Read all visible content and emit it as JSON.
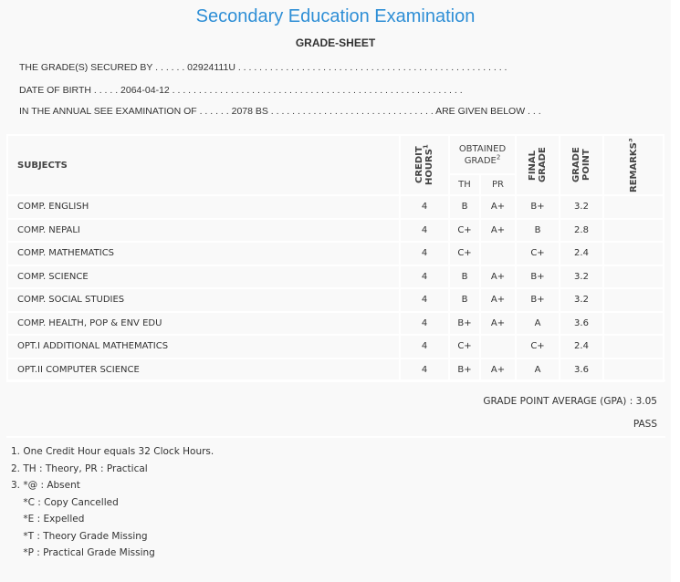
{
  "header": {
    "title": "Secondary Education Examination",
    "subtitle": "GRADE-SHEET",
    "secured_by": "THE GRADE(S) SECURED BY . . . . . . 02924111U . . . . . . . . . . . . . . . . . . . . . . . . . . . . . . . . . . . . . . . . . . . . . . . . . . .",
    "dob": "DATE OF BIRTH . . . . . 2064-04-12 . . . . . . . . . . . . . . . . . . . . . . . . . . . . . . . . . . . . . . . . . . . . . . . . . . . . . . .",
    "exam": "IN THE ANNUAL SEE EXAMINATION OF . . . . . . 2078 BS . . . . . . . . . . . . . . . . . . . . . . . . . . . . . . . ARE GIVEN BELOW . . ."
  },
  "table": {
    "headers": {
      "subjects": "SUBJECTS",
      "credit": "CREDIT HOURS",
      "credit_sup": "1",
      "obtained": "OBTAINED GRADE",
      "obtained_sup": "2",
      "th": "TH",
      "pr": "PR",
      "final": "FINAL GRADE",
      "gp": "GRADE POINT",
      "remarks": "REMARKS",
      "remarks_sup": "3"
    },
    "rows": [
      {
        "subject": "COMP. ENGLISH",
        "credit": "4",
        "th": "B",
        "pr": "A+",
        "final": "B+",
        "gp": "3.2",
        "remarks": ""
      },
      {
        "subject": "COMP. NEPALI",
        "credit": "4",
        "th": "C+",
        "pr": "A+",
        "final": "B",
        "gp": "2.8",
        "remarks": ""
      },
      {
        "subject": "COMP. MATHEMATICS",
        "credit": "4",
        "th": "C+",
        "pr": "",
        "final": "C+",
        "gp": "2.4",
        "remarks": ""
      },
      {
        "subject": "COMP. SCIENCE",
        "credit": "4",
        "th": "B",
        "pr": "A+",
        "final": "B+",
        "gp": "3.2",
        "remarks": ""
      },
      {
        "subject": "COMP. SOCIAL STUDIES",
        "credit": "4",
        "th": "B",
        "pr": "A+",
        "final": "B+",
        "gp": "3.2",
        "remarks": ""
      },
      {
        "subject": "COMP. HEALTH, POP & ENV EDU",
        "credit": "4",
        "th": "B+",
        "pr": "A+",
        "final": "A",
        "gp": "3.6",
        "remarks": ""
      },
      {
        "subject": "OPT.I ADDITIONAL MATHEMATICS",
        "credit": "4",
        "th": "C+",
        "pr": "",
        "final": "C+",
        "gp": "2.4",
        "remarks": ""
      },
      {
        "subject": "OPT.II COMPUTER SCIENCE",
        "credit": "4",
        "th": "B+",
        "pr": "A+",
        "final": "A",
        "gp": "3.6",
        "remarks": ""
      }
    ]
  },
  "summary": {
    "gpa": "GRADE POINT AVERAGE (GPA) : 3.05",
    "result": "PASS"
  },
  "notes": [
    "1. One Credit Hour equals 32 Clock Hours.",
    "2. TH : Theory, PR : Practical",
    "3. *@ : Absent",
    "    *C : Copy Cancelled",
    "    *E : Expelled",
    "    *T : Theory Grade Missing",
    "    *P : Practical Grade Missing"
  ],
  "colors": {
    "title": "#2f8fd6",
    "background": "#f9f9f9"
  }
}
